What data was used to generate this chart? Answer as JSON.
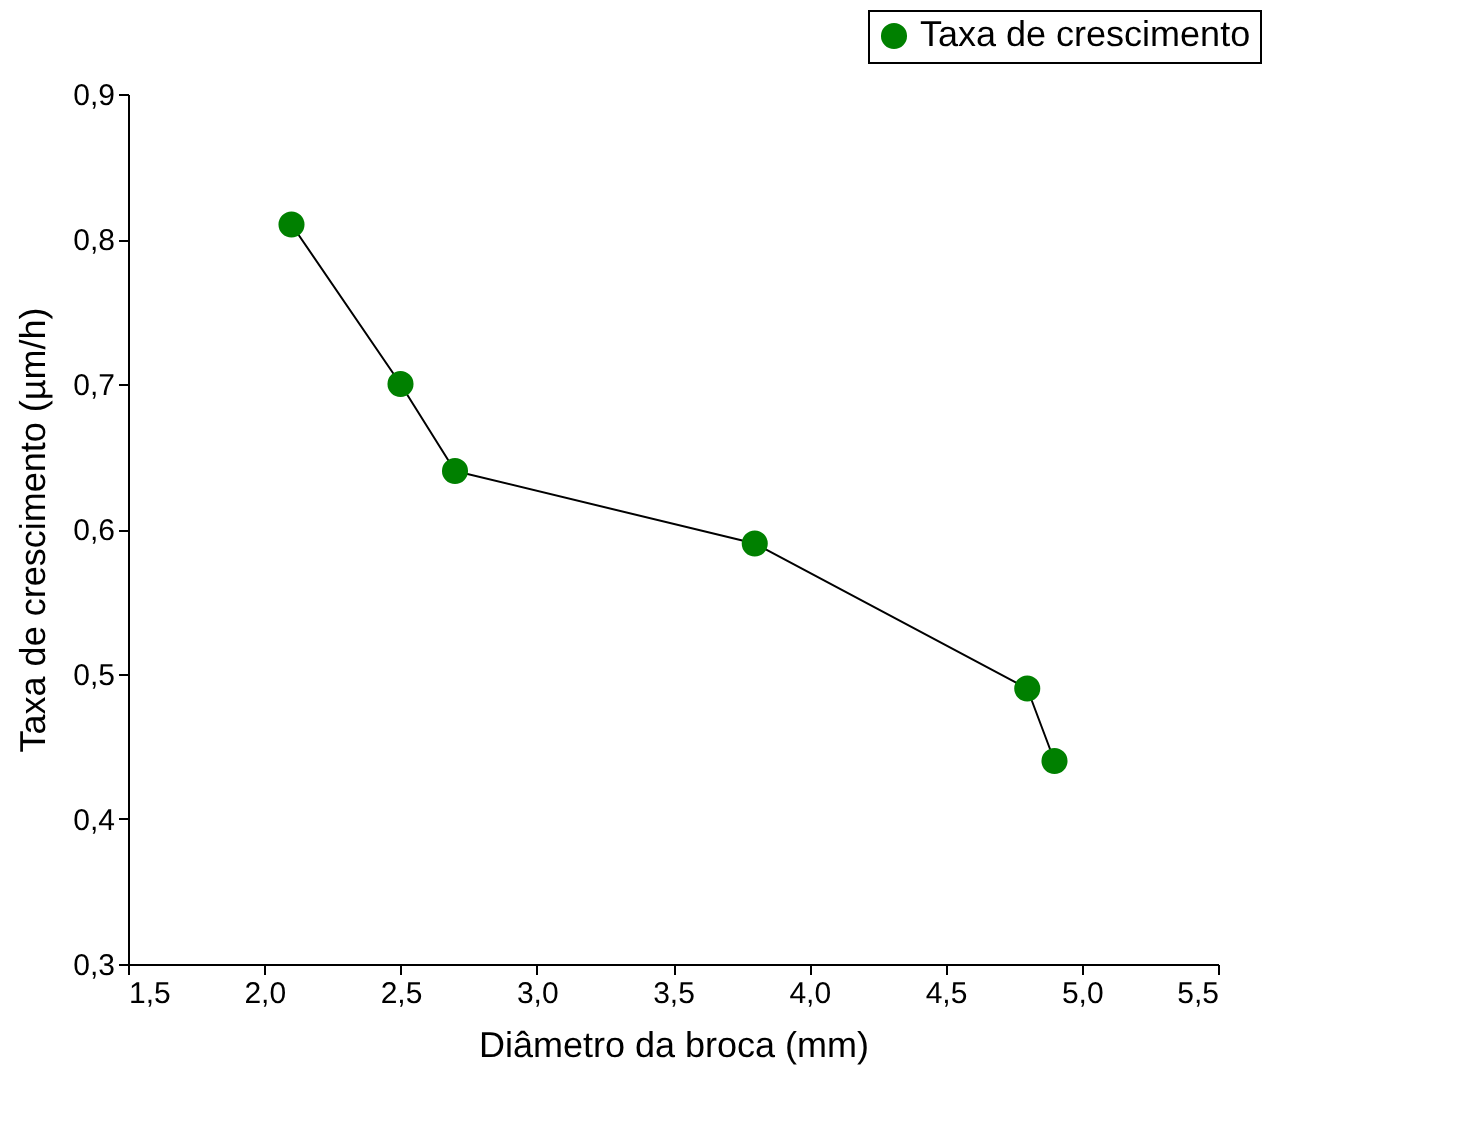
{
  "chart_data": {
    "type": "line",
    "xlabel": "Diâmetro da broca (mm)",
    "ylabel": "Taxa de crescimento (µm/h)",
    "x": [
      2.1,
      2.5,
      2.7,
      3.8,
      4.8,
      4.9
    ],
    "series": [
      {
        "name": "Taxa de crescimento",
        "color": "#008000",
        "values": [
          0.81,
          0.7,
          0.64,
          0.59,
          0.49,
          0.44
        ]
      }
    ],
    "xlim": [
      1.5,
      5.5
    ],
    "xticks": [
      {
        "value": 1.5,
        "label": "1,5"
      },
      {
        "value": 2.0,
        "label": "2,0"
      },
      {
        "value": 2.5,
        "label": "2,5"
      },
      {
        "value": 3.0,
        "label": "3,0"
      },
      {
        "value": 3.5,
        "label": "3,5"
      },
      {
        "value": 4.0,
        "label": "4,0"
      },
      {
        "value": 4.5,
        "label": "4,5"
      },
      {
        "value": 5.0,
        "label": "5,0"
      },
      {
        "value": 5.5,
        "label": "5,5"
      }
    ],
    "ylim": [
      0.3,
      0.9
    ],
    "yticks": [
      {
        "value": 0.3,
        "label": "0,3"
      },
      {
        "value": 0.4,
        "label": "0,4"
      },
      {
        "value": 0.5,
        "label": "0,5"
      },
      {
        "value": 0.6,
        "label": "0,6"
      },
      {
        "value": 0.7,
        "label": "0,7"
      },
      {
        "value": 0.8,
        "label": "0,8"
      },
      {
        "value": 0.9,
        "label": "0,9"
      }
    ],
    "marker": "circle",
    "line_style": "solid",
    "legend": "top right",
    "grid": false
  }
}
